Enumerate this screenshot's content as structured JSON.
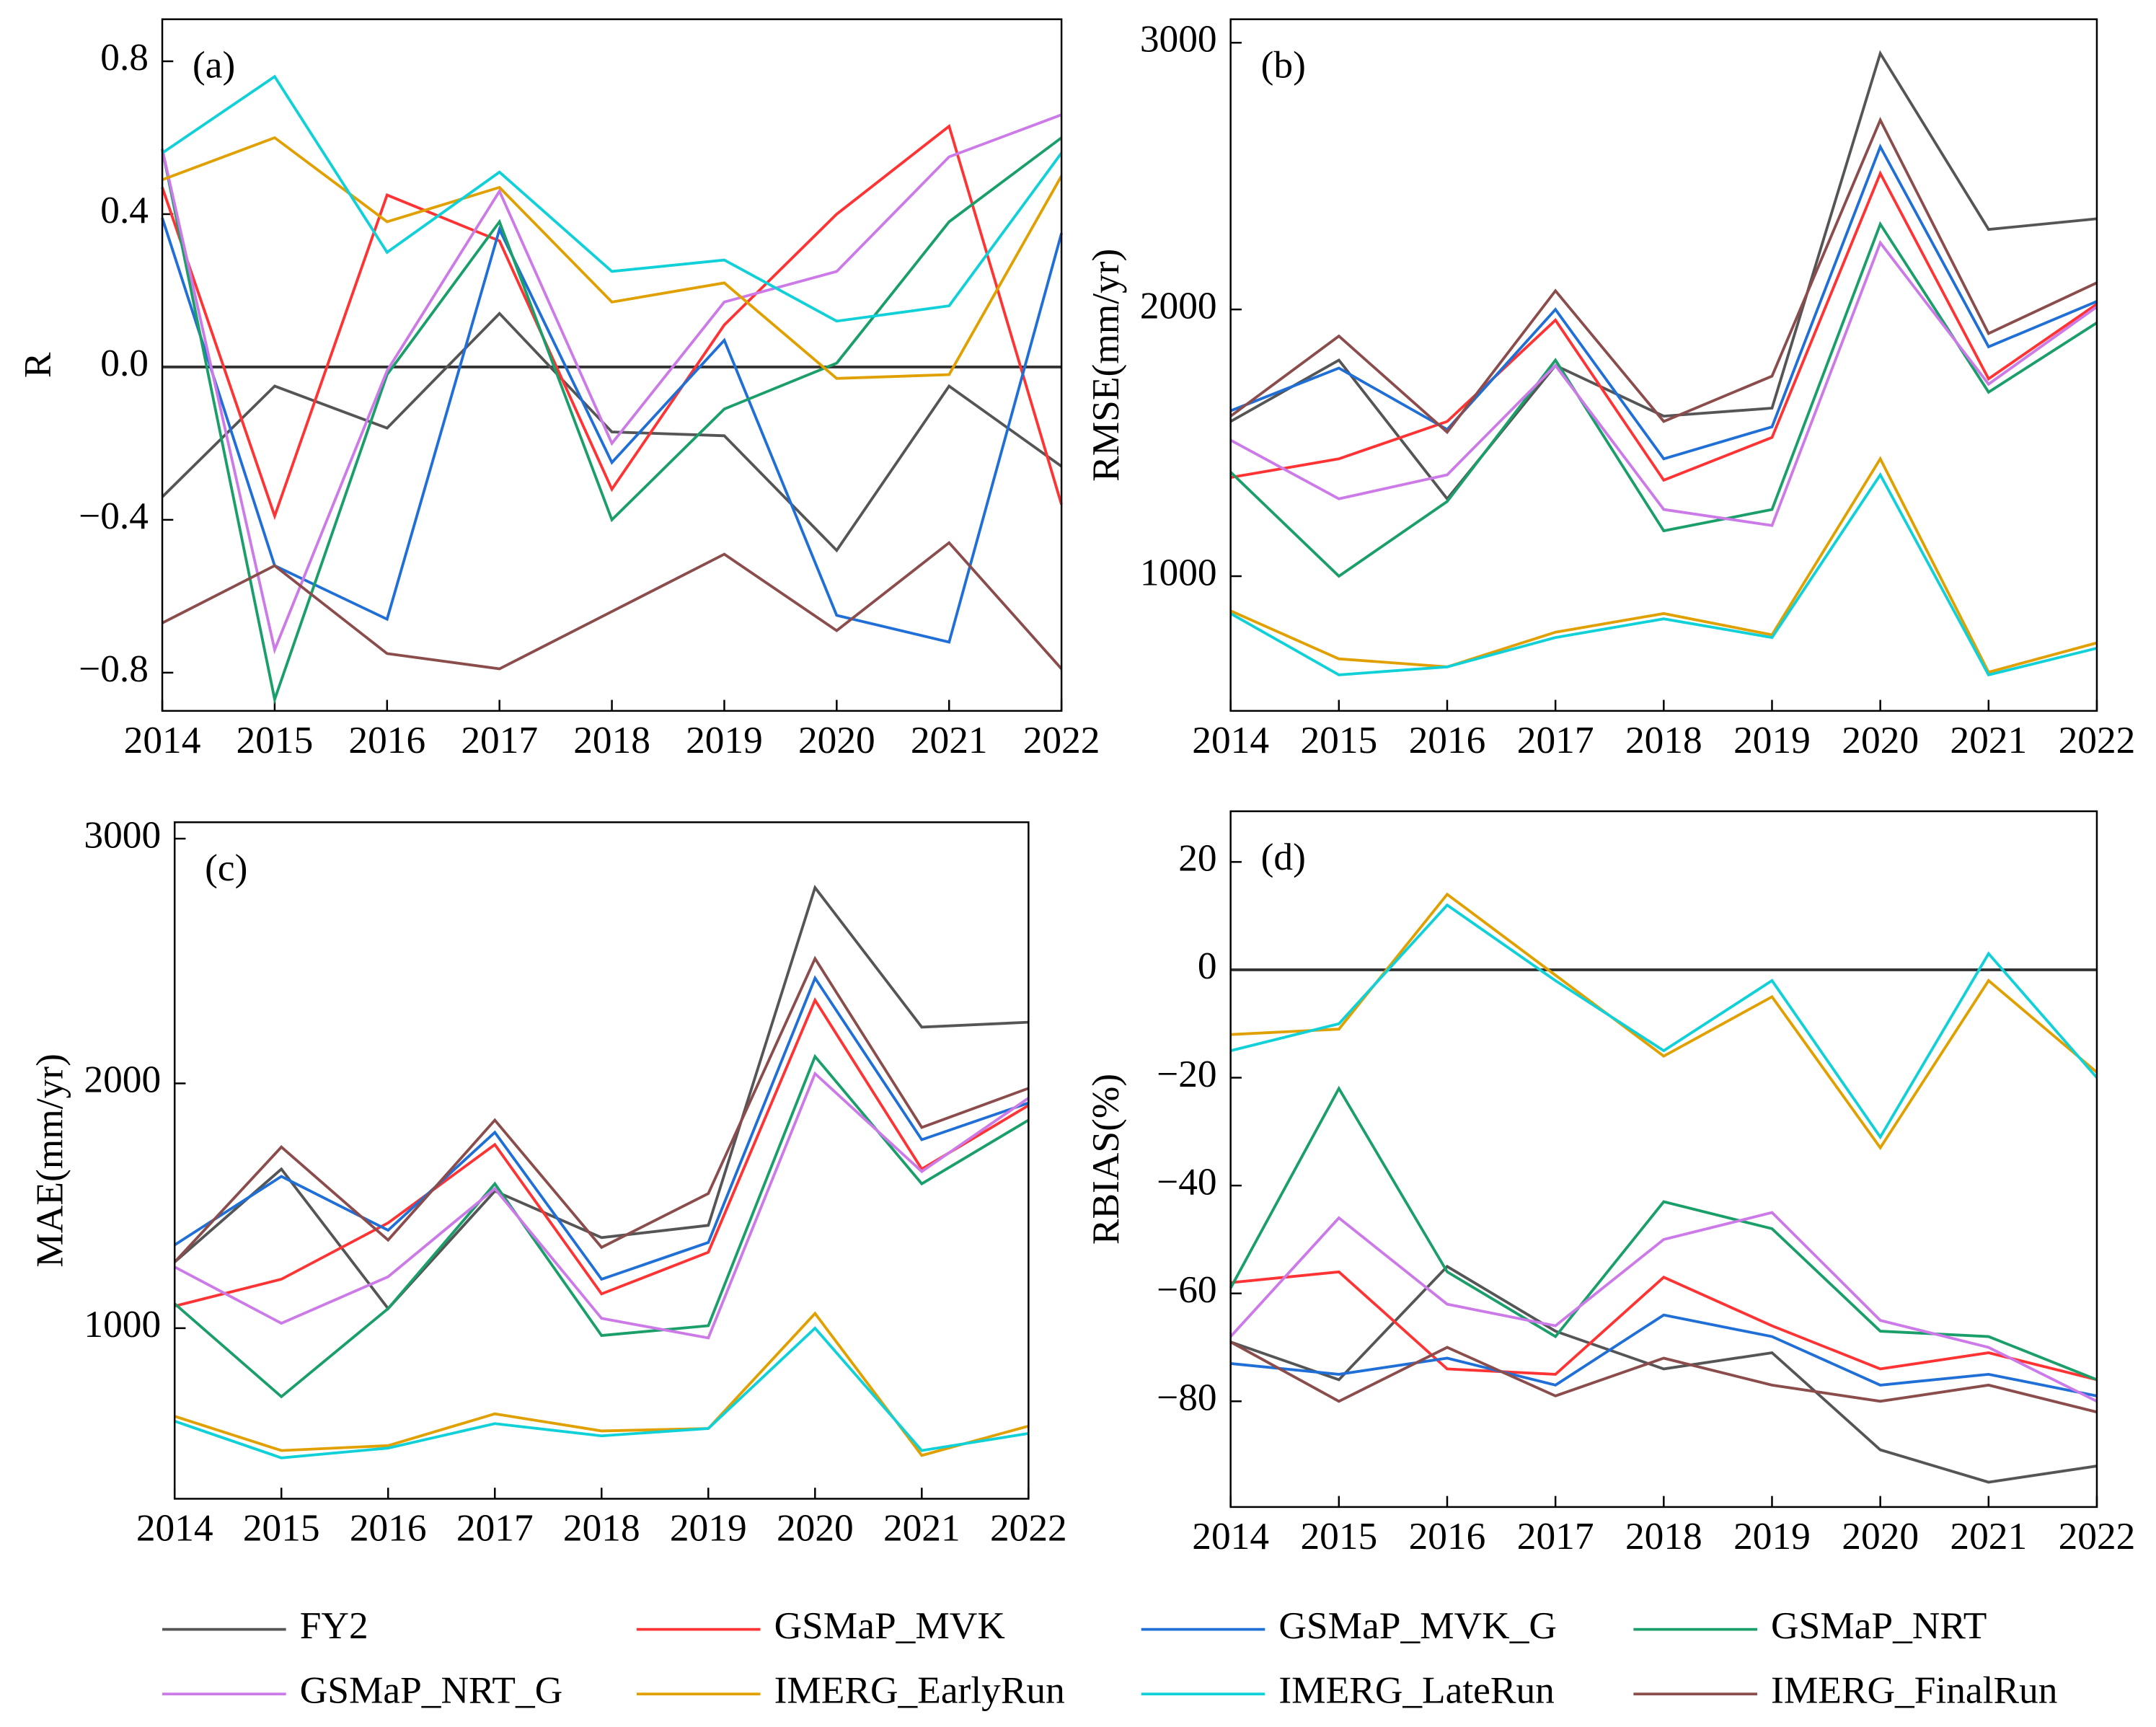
{
  "chart_data": [
    {
      "type": "line",
      "panel_label": "(a)",
      "y_label": "R",
      "x": [
        2014,
        2015,
        2016,
        2017,
        2018,
        2019,
        2020,
        2021,
        2022
      ],
      "xlim": [
        2014,
        2022
      ],
      "xticks": [
        2014,
        2015,
        2016,
        2017,
        2018,
        2019,
        2020,
        2021,
        2022
      ],
      "ylim": [
        -0.9,
        0.91
      ],
      "yticks": [
        {
          "value": -0.8,
          "label": "−0.8"
        },
        {
          "value": -0.4,
          "label": "−0.4"
        },
        {
          "value": 0,
          "label": "0.0"
        },
        0.4,
        0.8
      ],
      "zero_line": true,
      "series": [
        {
          "values": [
            -0.34,
            -0.05,
            -0.16,
            0.14,
            -0.17,
            -0.18,
            -0.48,
            -0.05,
            -0.26
          ]
        },
        {
          "values": [
            0.47,
            -0.39,
            0.45,
            0.33,
            -0.32,
            0.11,
            0.4,
            0.63,
            -0.36
          ]
        },
        {
          "values": [
            0.39,
            -0.52,
            -0.66,
            0.36,
            -0.25,
            0.07,
            -0.65,
            -0.72,
            0.35
          ]
        },
        {
          "values": [
            0.57,
            -0.87,
            -0.02,
            0.38,
            -0.4,
            -0.11,
            0.01,
            0.38,
            0.6
          ]
        },
        {
          "values": [
            0.57,
            -0.74,
            -0.01,
            0.46,
            -0.2,
            0.17,
            0.25,
            0.55,
            0.66
          ]
        },
        {
          "values": [
            0.49,
            0.6,
            0.38,
            0.47,
            0.17,
            0.22,
            -0.03,
            -0.02,
            0.5
          ]
        },
        {
          "values": [
            0.56,
            0.76,
            0.3,
            0.51,
            0.25,
            0.28,
            0.12,
            0.16,
            0.56
          ]
        },
        {
          "values": [
            -0.67,
            -0.52,
            -0.75,
            -0.79,
            -0.64,
            -0.49,
            -0.69,
            -0.46,
            -0.79
          ]
        }
      ]
    },
    {
      "type": "line",
      "panel_label": "(b)",
      "y_label": "RMSE(mm/yr)",
      "x": [
        2014,
        2015,
        2016,
        2017,
        2018,
        2019,
        2020,
        2021,
        2022
      ],
      "xlim": [
        2014,
        2022
      ],
      "xticks": [
        2014,
        2015,
        2016,
        2017,
        2018,
        2019,
        2020,
        2021,
        2022
      ],
      "ylim": [
        495,
        3088
      ],
      "yticks": [
        1000,
        2000,
        3000
      ],
      "zero_line": false,
      "series": [
        {
          "values": [
            1580,
            1810,
            1290,
            1790,
            1600,
            1630,
            2960,
            2300,
            2340
          ]
        },
        {
          "values": [
            1370,
            1440,
            1580,
            1960,
            1360,
            1520,
            2510,
            1740,
            2020
          ]
        },
        {
          "values": [
            1620,
            1780,
            1550,
            2000,
            1440,
            1560,
            2610,
            1860,
            2030
          ]
        },
        {
          "values": [
            1390,
            1000,
            1280,
            1810,
            1170,
            1250,
            2320,
            1690,
            1950
          ]
        },
        {
          "values": [
            1510,
            1290,
            1380,
            1790,
            1250,
            1190,
            2250,
            1720,
            2010
          ]
        },
        {
          "values": [
            870,
            690,
            660,
            790,
            860,
            780,
            1440,
            640,
            750
          ]
        },
        {
          "values": [
            860,
            630,
            660,
            770,
            840,
            770,
            1380,
            630,
            730
          ]
        },
        {
          "values": [
            1600,
            1900,
            1540,
            2070,
            1580,
            1750,
            2710,
            1910,
            2100
          ]
        }
      ]
    },
    {
      "type": "line",
      "panel_label": "(c)",
      "y_label": "MAE(mm/yr)",
      "x": [
        2014,
        2015,
        2016,
        2017,
        2018,
        2019,
        2020,
        2021,
        2022
      ],
      "xlim": [
        2014,
        2022
      ],
      "xticks": [
        2014,
        2015,
        2016,
        2017,
        2018,
        2019,
        2020,
        2021,
        2022
      ],
      "ylim": [
        303,
        3067
      ],
      "yticks": [
        1000,
        2000,
        3000
      ],
      "zero_line": false,
      "series": [
        {
          "values": [
            1270,
            1650,
            1080,
            1560,
            1370,
            1420,
            2800,
            2230,
            2250
          ]
        },
        {
          "values": [
            1090,
            1200,
            1430,
            1750,
            1140,
            1310,
            2340,
            1650,
            1910
          ]
        },
        {
          "values": [
            1340,
            1620,
            1400,
            1800,
            1200,
            1350,
            2430,
            1770,
            1920
          ]
        },
        {
          "values": [
            1100,
            720,
            1080,
            1590,
            970,
            1010,
            2110,
            1590,
            1850
          ]
        },
        {
          "values": [
            1250,
            1020,
            1210,
            1570,
            1040,
            960,
            2040,
            1640,
            1940
          ]
        },
        {
          "values": [
            640,
            500,
            520,
            650,
            580,
            590,
            1060,
            480,
            600
          ]
        },
        {
          "values": [
            620,
            470,
            510,
            610,
            560,
            590,
            1000,
            500,
            570
          ]
        },
        {
          "values": [
            1270,
            1740,
            1360,
            1850,
            1330,
            1550,
            2510,
            1820,
            1980
          ]
        }
      ]
    },
    {
      "type": "line",
      "panel_label": "(d)",
      "y_label": "RBIAS(%)",
      "x": [
        2014,
        2015,
        2016,
        2017,
        2018,
        2019,
        2020,
        2021,
        2022
      ],
      "xlim": [
        2014,
        2022
      ],
      "xticks": [
        2014,
        2015,
        2016,
        2017,
        2018,
        2019,
        2020,
        2021,
        2022
      ],
      "ylim": [
        -99.6,
        29.4
      ],
      "yticks": [
        {
          "value": -80,
          "label": "−80"
        },
        {
          "value": -60,
          "label": "−60"
        },
        {
          "value": -40,
          "label": "−40"
        },
        {
          "value": -20,
          "label": "−20"
        },
        0,
        20
      ],
      "zero_line": true,
      "series": [
        {
          "values": [
            -69,
            -76,
            -55,
            -67,
            -74,
            -71,
            -89,
            -95,
            -92
          ]
        },
        {
          "values": [
            -58,
            -56,
            -74,
            -75,
            -57,
            -66,
            -74,
            -71,
            -76
          ]
        },
        {
          "values": [
            -73,
            -75,
            -72,
            -77,
            -64,
            -68,
            -77,
            -75,
            -79
          ]
        },
        {
          "values": [
            -59,
            -22,
            -56,
            -68,
            -43,
            -48,
            -67,
            -68,
            -76
          ]
        },
        {
          "values": [
            -68,
            -46,
            -62,
            -66,
            -50,
            -45,
            -65,
            -70,
            -80
          ]
        },
        {
          "values": [
            -12,
            -11,
            14,
            -1,
            -16,
            -5,
            -33,
            -2,
            -19
          ]
        },
        {
          "values": [
            -15,
            -10,
            12,
            -2,
            -15,
            -2,
            -31,
            3,
            -20
          ]
        },
        {
          "values": [
            -69,
            -80,
            -70,
            -79,
            -72,
            -77,
            -80,
            -77,
            -82
          ]
        }
      ]
    }
  ],
  "legend": [
    {
      "name": "FY2",
      "color": "#555555"
    },
    {
      "name": "GSMaP_MVK",
      "color": "#ff3333"
    },
    {
      "name": "GSMaP_MVK_G",
      "color": "#1f6fd6"
    },
    {
      "name": "GSMaP_NRT",
      "color": "#1a9e6a"
    },
    {
      "name": "GSMaP_NRT_G",
      "color": "#cc7ae8"
    },
    {
      "name": "IMERG_EarlyRun",
      "color": "#e0a000"
    },
    {
      "name": "IMERG_LateRun",
      "color": "#10d0d8"
    },
    {
      "name": "IMERG_FinalRun",
      "color": "#8b4c4c"
    }
  ]
}
